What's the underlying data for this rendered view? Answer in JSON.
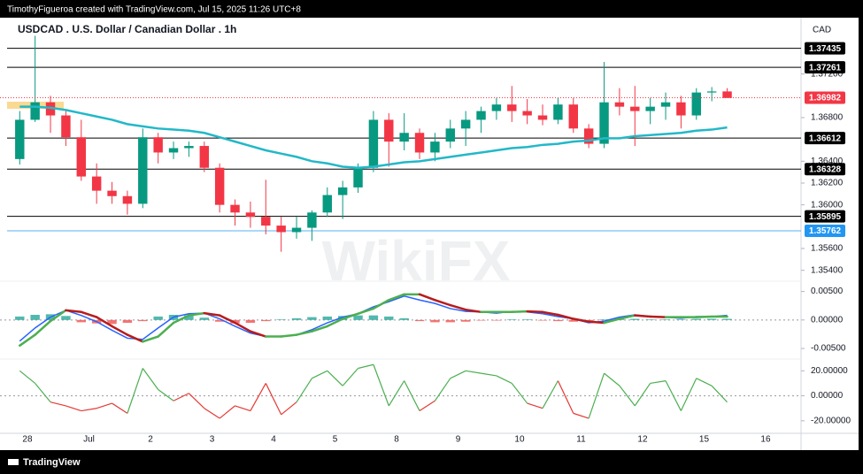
{
  "chart_data": {
    "type": "candlestick",
    "attribution": "TimothyFigueroa created with TradingView.com, Jul 15, 2025 11:26 UTC+8",
    "title": "USDCAD . U.S. Dollar / Canadian Dollar . 1h",
    "currency": "CAD",
    "watermark": "WikiFX",
    "brand": "TradingView",
    "categories": [
      "28",
      "Jul",
      "2",
      "3",
      "4",
      "5",
      "8",
      "9",
      "10",
      "11",
      "12",
      "15",
      "16"
    ],
    "up_color": "#089981",
    "down_color": "#f23645",
    "candles": {
      "open": [
        1.3642,
        1.3678,
        1.3694,
        1.3682,
        1.3662,
        1.3626,
        1.3613,
        1.3608,
        1.3601,
        1.3662,
        1.3648,
        1.3652,
        1.3654,
        1.3634,
        1.36,
        1.3593,
        1.3589,
        1.3581,
        1.3575,
        1.3579,
        1.3593,
        1.3609,
        1.3616,
        1.3634,
        1.3678,
        1.3658,
        1.3666,
        1.3648,
        1.3658,
        1.367,
        1.3678,
        1.3686,
        1.3692,
        1.3686,
        1.3682,
        1.3678,
        1.3692,
        1.367,
        1.3656,
        1.3694,
        1.369,
        1.3686,
        1.369,
        1.3694,
        1.3682,
        1.3703,
        1.3704
      ],
      "high": [
        1.3686,
        1.3755,
        1.37,
        1.3686,
        1.3678,
        1.3638,
        1.3621,
        1.3613,
        1.367,
        1.3666,
        1.3658,
        1.3658,
        1.3658,
        1.3638,
        1.3605,
        1.3603,
        1.3623,
        1.3589,
        1.3589,
        1.3595,
        1.3616,
        1.3622,
        1.3638,
        1.3686,
        1.3684,
        1.3684,
        1.367,
        1.3666,
        1.3678,
        1.3686,
        1.369,
        1.3698,
        1.3709,
        1.3697,
        1.3692,
        1.3698,
        1.3698,
        1.3674,
        1.3731,
        1.3707,
        1.3709,
        1.3698,
        1.3703,
        1.37,
        1.3707,
        1.3708,
        1.3707
      ],
      "low": [
        1.3637,
        1.3676,
        1.3666,
        1.3654,
        1.3622,
        1.3601,
        1.3601,
        1.3591,
        1.3597,
        1.3638,
        1.3642,
        1.3644,
        1.363,
        1.3593,
        1.3581,
        1.3579,
        1.3573,
        1.3557,
        1.3569,
        1.3567,
        1.3589,
        1.3587,
        1.3611,
        1.363,
        1.3635,
        1.365,
        1.3642,
        1.364,
        1.3652,
        1.3654,
        1.3666,
        1.3678,
        1.3676,
        1.3674,
        1.3673,
        1.3674,
        1.3666,
        1.3652,
        1.3652,
        1.3682,
        1.3654,
        1.3674,
        1.3678,
        1.367,
        1.3678,
        1.3695,
        1.3699
      ],
      "close": [
        1.3678,
        1.3694,
        1.3682,
        1.3662,
        1.3626,
        1.3613,
        1.3608,
        1.3601,
        1.3662,
        1.3648,
        1.3652,
        1.3654,
        1.3634,
        1.36,
        1.3593,
        1.3589,
        1.3581,
        1.3575,
        1.3579,
        1.3593,
        1.3609,
        1.3616,
        1.3634,
        1.3678,
        1.3658,
        1.3666,
        1.3648,
        1.3658,
        1.367,
        1.3678,
        1.3686,
        1.3692,
        1.3686,
        1.3682,
        1.3678,
        1.3692,
        1.367,
        1.3656,
        1.3694,
        1.369,
        1.3686,
        1.369,
        1.3694,
        1.3682,
        1.3703,
        1.3704,
        1.3698
      ]
    },
    "moving_average": {
      "color": "#22b8c8",
      "values": [
        1.369,
        1.369,
        1.3689,
        1.3687,
        1.3684,
        1.3681,
        1.3678,
        1.3674,
        1.3672,
        1.367,
        1.3669,
        1.3668,
        1.3666,
        1.3662,
        1.3658,
        1.3654,
        1.365,
        1.3647,
        1.3644,
        1.364,
        1.3638,
        1.3635,
        1.3634,
        1.3635,
        1.3637,
        1.3639,
        1.364,
        1.3642,
        1.3644,
        1.3646,
        1.3648,
        1.365,
        1.3652,
        1.3653,
        1.3655,
        1.3656,
        1.3658,
        1.3659,
        1.3661,
        1.3661,
        1.3663,
        1.3664,
        1.3665,
        1.3666,
        1.3668,
        1.3669,
        1.3671
      ]
    },
    "panes": {
      "price": {
        "ylim": [
          1.353,
          1.37716
        ],
        "yticks": [
          {
            "value": 1.372,
            "label": "1.37200"
          },
          {
            "value": 1.368,
            "label": "1.36800"
          },
          {
            "value": 1.364,
            "label": "1.36400"
          },
          {
            "value": 1.362,
            "label": "1.36200"
          },
          {
            "value": 1.36,
            "label": "1.36000"
          },
          {
            "value": 1.356,
            "label": "1.35600"
          },
          {
            "value": 1.354,
            "label": "1.35400"
          }
        ],
        "levels": [
          {
            "value": 1.37435,
            "color": "#000000"
          },
          {
            "value": 1.37261,
            "color": "#000000"
          },
          {
            "value": 1.36612,
            "color": "#000000"
          },
          {
            "value": 1.36328,
            "color": "#000000"
          },
          {
            "value": 1.35895,
            "color": "#000000"
          },
          {
            "value": 1.35762,
            "color": "#2196f3"
          }
        ],
        "last_price": 1.36982,
        "last_price_color": "#f23645"
      },
      "macd": {
        "ylim": [
          -0.0067,
          0.0068
        ],
        "yticks": [
          {
            "value": 0.005,
            "label": "0.00500"
          },
          {
            "value": 0,
            "label": "0.00000"
          },
          {
            "value": -0.005,
            "label": "-0.00500"
          }
        ],
        "zero_line": true,
        "macd_color": "#2962ff",
        "signal_up_color": "#4caf50",
        "signal_down_color": "#b71c1c",
        "hist_up_color": "#26a69a",
        "hist_down_color": "#ef5350",
        "macd": [
          -0.0037,
          -0.0014,
          0.0005,
          0.0017,
          0.0008,
          -0.0003,
          -0.0018,
          -0.0032,
          -0.0034,
          -0.0014,
          0.0005,
          0.0011,
          0.0012,
          0.0002,
          -0.0011,
          -0.0023,
          -0.0029,
          -0.0029,
          -0.0026,
          -0.0017,
          -0.0005,
          0.0005,
          0.0011,
          0.0023,
          0.0032,
          0.0042,
          0.0035,
          0.0029,
          0.002,
          0.0015,
          0.0014,
          0.0012,
          0.0015,
          0.0014,
          0.0011,
          0.0006,
          0.0002,
          -0.0005,
          -0.0002,
          0.0005,
          0.0009,
          0.0006,
          0.0005,
          0.0003,
          0.0006,
          0.0006,
          0.0008
        ],
        "signal": [
          -0.0045,
          -0.0026,
          -0.0002,
          0.0017,
          0.0014,
          0.0005,
          -0.0011,
          -0.0026,
          -0.0038,
          -0.0029,
          -0.0005,
          0.0008,
          0.0012,
          0.0008,
          -0.0005,
          -0.002,
          -0.0029,
          -0.0029,
          -0.0026,
          -0.002,
          -0.0011,
          0.0002,
          0.0011,
          0.002,
          0.0035,
          0.0045,
          0.0045,
          0.0035,
          0.0026,
          0.0018,
          0.0014,
          0.0014,
          0.0014,
          0.0015,
          0.0014,
          0.0009,
          0.0002,
          -0.0003,
          -0.0005,
          0.0002,
          0.0008,
          0.0006,
          0.0005,
          0.0005,
          0.0005,
          0.0006,
          0.0006
        ],
        "histogram": [
          0.0006,
          0.0009,
          0.001,
          0.0007,
          -0.0004,
          -0.0006,
          -0.0007,
          -0.0005,
          -0.0002,
          0.0006,
          0.0009,
          0.0008,
          0.0004,
          -0.0003,
          -0.0006,
          -0.0005,
          -0.0002,
          0.0001,
          0.0003,
          0.0005,
          0.0006,
          0.0007,
          0.0008,
          0.0008,
          0.0006,
          0.0003,
          -0.0002,
          -0.0004,
          -0.0004,
          -0.0003,
          -0.0001,
          -0.0001,
          0.0001,
          0.0001,
          -0.0001,
          -0.0002,
          -0.0003,
          -0.0002,
          0.0001,
          0.0002,
          0.0002,
          0.0001,
          0.0001,
          0.0001,
          0.0002,
          0.0002,
          0.0002
        ]
      },
      "oscillator": {
        "ylim": [
          -30,
          28
        ],
        "yticks": [
          {
            "value": 20,
            "label": "20.00000"
          },
          {
            "value": 0,
            "label": "0.00000"
          },
          {
            "value": -20,
            "label": "-20.00000"
          }
        ],
        "zero_line": true,
        "positive_color": "#4caf50",
        "negative_color": "#e53935",
        "values": [
          20,
          10,
          -5,
          -8,
          -12,
          -10,
          -6,
          -14,
          22,
          5,
          -4,
          2,
          -10,
          -18,
          -8,
          -12,
          10,
          -15,
          -5,
          14,
          20,
          8,
          22,
          25,
          -8,
          12,
          -12,
          -4,
          14,
          20,
          18,
          16,
          10,
          -6,
          -10,
          12,
          -14,
          -18,
          18,
          8,
          -8,
          10,
          12,
          -12,
          14,
          8,
          -5
        ]
      }
    }
  }
}
